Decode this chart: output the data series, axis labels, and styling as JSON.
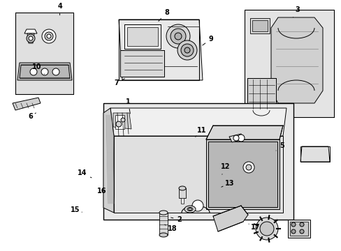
{
  "background_color": "#ffffff",
  "line_color": "#000000",
  "shade_color": "#d8d8d8",
  "light_shade": "#e8e8e8",
  "label_data": [
    [
      1,
      0.375,
      0.405,
      0.382,
      0.46
    ],
    [
      2,
      0.525,
      0.875,
      0.495,
      0.865
    ],
    [
      3,
      0.87,
      0.04,
      0.855,
      0.075
    ],
    [
      4,
      0.175,
      0.025,
      0.175,
      0.06
    ],
    [
      5,
      0.825,
      0.58,
      0.808,
      0.6
    ],
    [
      6,
      0.09,
      0.465,
      0.105,
      0.45
    ],
    [
      7,
      0.34,
      0.33,
      0.37,
      0.31
    ],
    [
      8,
      0.488,
      0.05,
      0.46,
      0.09
    ],
    [
      9,
      0.618,
      0.155,
      0.588,
      0.185
    ],
    [
      10,
      0.108,
      0.268,
      0.13,
      0.295
    ],
    [
      11,
      0.59,
      0.52,
      0.572,
      0.545
    ],
    [
      12,
      0.66,
      0.665,
      0.65,
      0.695
    ],
    [
      13,
      0.672,
      0.73,
      0.648,
      0.745
    ],
    [
      14,
      0.24,
      0.69,
      0.268,
      0.708
    ],
    [
      15,
      0.22,
      0.835,
      0.24,
      0.845
    ],
    [
      16,
      0.298,
      0.76,
      0.288,
      0.772
    ],
    [
      17,
      0.748,
      0.905,
      0.728,
      0.892
    ],
    [
      18,
      0.505,
      0.91,
      0.482,
      0.895
    ]
  ]
}
